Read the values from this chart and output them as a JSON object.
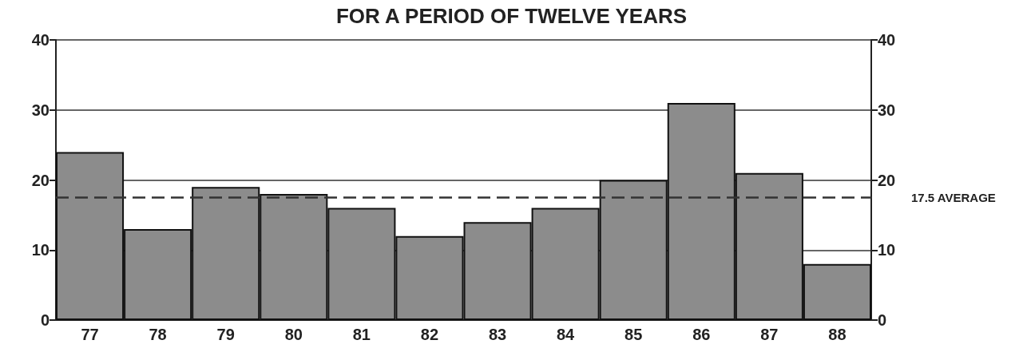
{
  "chart_data": {
    "type": "bar",
    "title": "FOR A PERIOD OF TWELVE YEARS",
    "categories": [
      "77",
      "78",
      "79",
      "80",
      "81",
      "82",
      "83",
      "84",
      "85",
      "86",
      "87",
      "88"
    ],
    "values": [
      24,
      13,
      19,
      18,
      16,
      12,
      14,
      16,
      20,
      31,
      21,
      8
    ],
    "color": "#8c8c8c",
    "ylim": [
      0,
      40
    ],
    "yticks": [
      0,
      10,
      20,
      30,
      40
    ],
    "y2lim": [
      0,
      40
    ],
    "y2ticks": [
      0,
      10,
      20,
      30,
      40
    ],
    "grid": "y",
    "ref_lines": [
      {
        "axis": "y",
        "value": 17.5,
        "label": "17.5 AVERAGE",
        "color": "#333333",
        "line_style": "dashed"
      }
    ]
  }
}
